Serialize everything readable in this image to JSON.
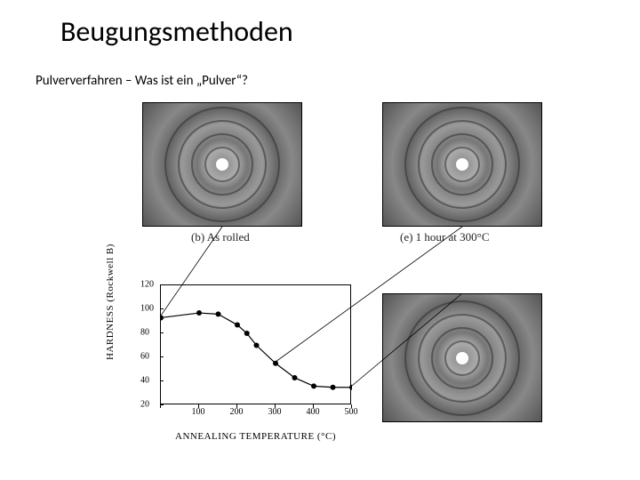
{
  "title": "Beugungsmethoden",
  "subtitle": "Pulververfahren – Was ist ein „Pulver“?",
  "diffraction_images": {
    "b": {
      "caption": "(b) As rolled",
      "rings": [
        40,
        70,
        100,
        130
      ]
    },
    "e": {
      "caption": "(e) 1 hour at 300°C",
      "rings": [
        40,
        70,
        100,
        130
      ]
    },
    "f": {
      "caption": "",
      "rings": [
        40,
        70,
        100,
        130
      ]
    }
  },
  "chart": {
    "type": "line",
    "xlabel": "ANNEALING TEMPERATURE (°C)",
    "ylabel": "HARDNESS (Rockwell B)",
    "xlim": [
      0,
      500
    ],
    "ylim": [
      20,
      120
    ],
    "xticks": [
      0,
      100,
      200,
      300,
      400,
      500
    ],
    "yticks": [
      20,
      40,
      60,
      80,
      100,
      120
    ],
    "xtick_labels": [
      "",
      "100",
      "200",
      "300",
      "400",
      "500"
    ],
    "ytick_labels": [
      "20",
      "40",
      "60",
      "80",
      "100",
      "120"
    ],
    "points": [
      {
        "x": 0,
        "y": 93
      },
      {
        "x": 100,
        "y": 97
      },
      {
        "x": 150,
        "y": 96
      },
      {
        "x": 200,
        "y": 87
      },
      {
        "x": 225,
        "y": 80
      },
      {
        "x": 250,
        "y": 70
      },
      {
        "x": 300,
        "y": 55
      },
      {
        "x": 350,
        "y": 43
      },
      {
        "x": 400,
        "y": 36
      },
      {
        "x": 450,
        "y": 35
      },
      {
        "x": 500,
        "y": 35
      }
    ],
    "line_color": "#000000",
    "marker_color": "#000000",
    "marker_size": 4,
    "line_width": 1.2,
    "background_color": "#ffffff",
    "label_fontsize": 11,
    "tick_fontsize": 10
  },
  "leaders": [
    {
      "from_point_index": 0,
      "to_image": "b"
    },
    {
      "from_point_index": 6,
      "to_image": "e"
    },
    {
      "from_point_index": 10,
      "to_image": "f"
    }
  ]
}
